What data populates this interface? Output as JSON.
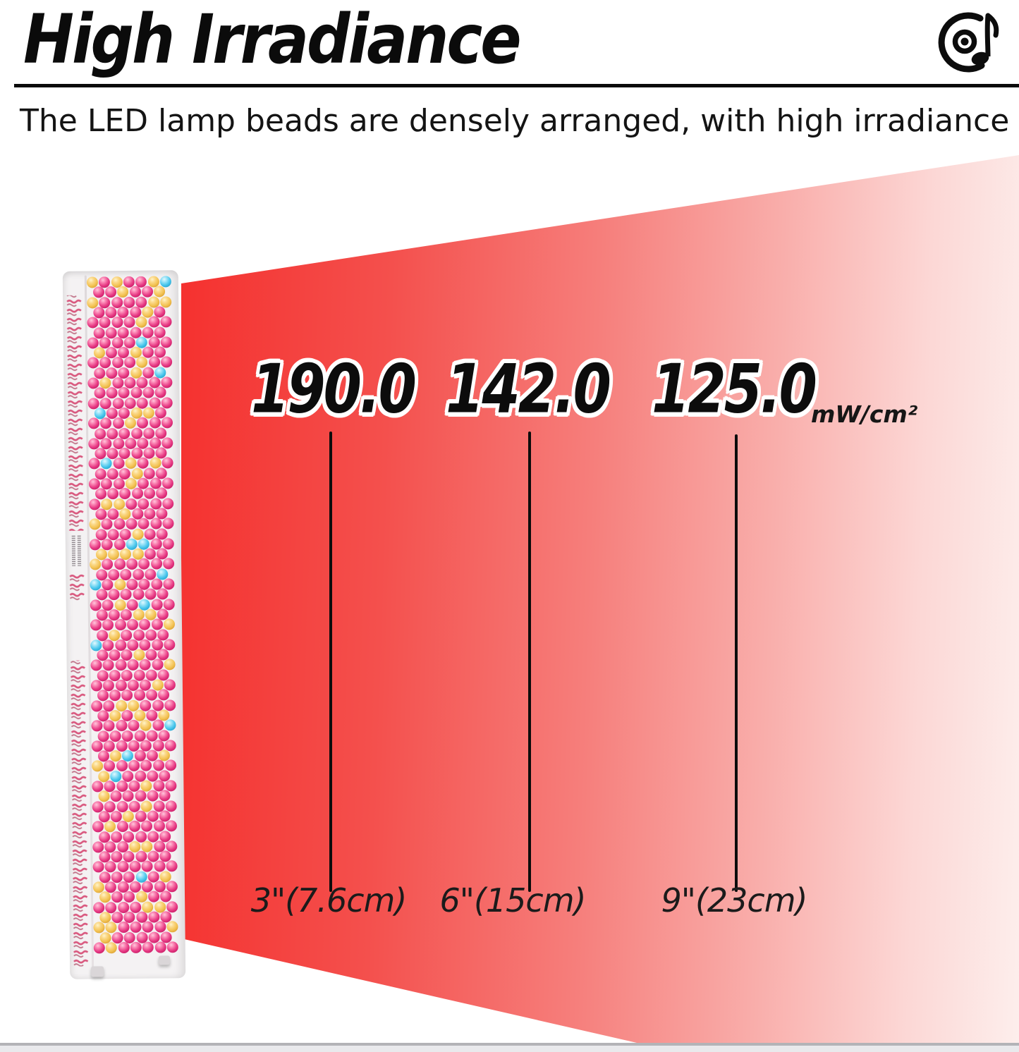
{
  "header": {
    "title": "High Irradiance",
    "subtitle": "The LED lamp beads are densely arranged, with high irradiance",
    "icon": "music-record-icon"
  },
  "measurements": {
    "unit": "mW/cm²",
    "points": [
      {
        "value": "190.0",
        "distance": "3\"(7.6cm)"
      },
      {
        "value": "142.0",
        "distance": "6\"(15cm)"
      },
      {
        "value": "125.0",
        "distance": "9\"(23cm)"
      }
    ]
  },
  "device": {
    "description": "vertical LED light therapy panel with dense pink, yellow and blue lamp beads"
  },
  "colors": {
    "beam_start": "#f61a1a",
    "beam_mid1": "#f4504d",
    "beam_mid2": "#f9aeab",
    "beam_end": "#fdeeec",
    "led_pink": "#e73a84",
    "led_yellow": "#f3c354",
    "led_blue": "#49c6ec",
    "panel_body": "#f4f2f3",
    "bar_fill": "#e9e9ec",
    "bar_line": "#b3b3b7"
  }
}
